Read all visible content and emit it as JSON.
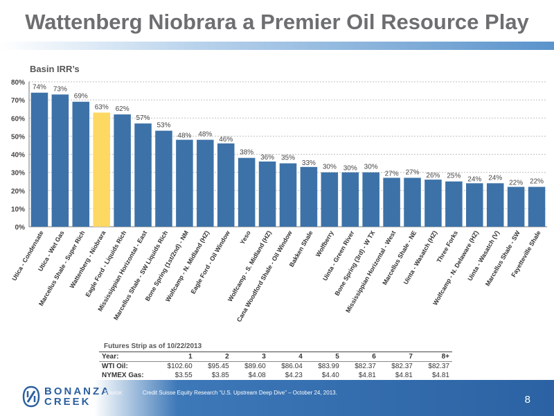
{
  "title": "Wattenberg Niobrara a Premier Oil Resource Play",
  "chart_data": {
    "type": "bar",
    "title": "Basin IRR’s",
    "xlabel": "",
    "ylabel": "",
    "ylim": [
      0,
      80
    ],
    "yticks": [
      "0%",
      "10%",
      "20%",
      "30%",
      "40%",
      "50%",
      "60%",
      "70%",
      "80%"
    ],
    "grid": true,
    "highlight_category": "Wattenberg - Niobrara",
    "colors": {
      "bar": "#3d72a8",
      "highlight": "#fdd863",
      "grid": "#bfbfbf"
    },
    "categories": [
      "Utica - Condensate",
      "Utica - Wet Gas",
      "Marcellus Shale - Super Rich",
      "Wattenberg - Niobrara",
      "Eagle Ford - Liquids Rich",
      "Mississippian Horizontal - East",
      "Marcellus Shale - SW Liquids Rich",
      "Bone Spring (1st/2nd) - NM",
      "Wolfcamp - N. Midland (HZ)",
      "Eagle Ford - Oil Window",
      "Yeso",
      "Wolfcamp - S. Midland (HZ)",
      "Cana Woodford Shale - Oil Window",
      "Bakken Shale",
      "Wolfberry",
      "Uinta - Green River",
      "Bone Spring (3rd) - W TX",
      "Mississippian Horizontal - West",
      "Marcellus Shale - NE",
      "Uinta - Wasatch (HZ)",
      "Three Forks",
      "Wolfcamp - N. Delaware (HZ)",
      "Uinta - Wasatch (V)",
      "Marcellus Shale - SW",
      "Fayetteville Shale"
    ],
    "values": [
      74,
      73,
      69,
      63,
      62,
      57,
      53,
      48,
      48,
      46,
      38,
      36,
      35,
      33,
      30,
      30,
      30,
      27,
      27,
      26,
      25,
      24,
      24,
      22,
      22
    ],
    "data_labels": [
      "74%",
      "73%",
      "69%",
      "63%",
      "62%",
      "57%",
      "53%",
      "48%",
      "48%",
      "46%",
      "38%",
      "36%",
      "35%",
      "33%",
      "30%",
      "30%",
      "30%",
      "27%",
      "27%",
      "26%",
      "25%",
      "24%",
      "24%",
      "22%",
      "22%"
    ]
  },
  "futures": {
    "title": "Futures Strip as of 10/22/2013",
    "header": [
      "Year:",
      "1",
      "2",
      "3",
      "4",
      "5",
      "6",
      "7",
      "8+"
    ],
    "rows": [
      [
        "WTI Oil:",
        "$102.60",
        "$95.45",
        "$89.60",
        "$86.04",
        "$83.99",
        "$82.37",
        "$82.37",
        "$82.37"
      ],
      [
        "NYMEX Gas:",
        "$3.55",
        "$3.85",
        "$4.08",
        "$4.23",
        "$4.40",
        "$4.81",
        "$4.81",
        "$4.81"
      ]
    ]
  },
  "footer": {
    "logo_line1": "BONANZA",
    "logo_line2": "CREEK",
    "source_label": "Source:",
    "source_text": "Credit Suisse Equity Research “U.S. Upstream Deep Dive” – October 24, 2013.",
    "page_number": "8"
  }
}
